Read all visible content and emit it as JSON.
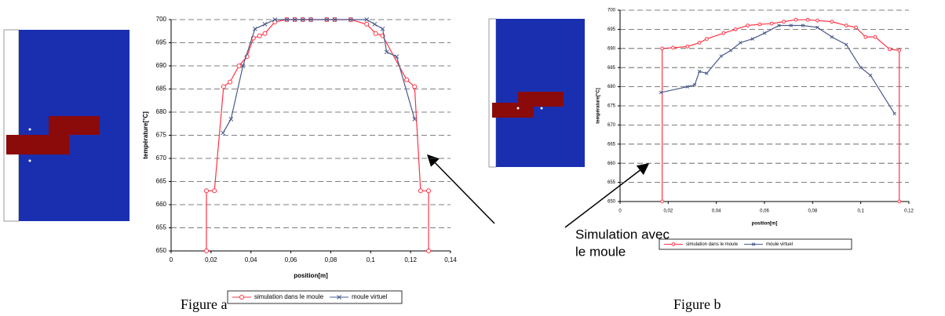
{
  "chart_data": [
    {
      "type": "line",
      "caption": "Figure a",
      "x_label": "position[m]",
      "y_label": "température[°C]",
      "xlim": [
        0,
        0.14
      ],
      "ylim": [
        650,
        700
      ],
      "xticks": [
        0,
        {
          "value": 0.02,
          "label": "0,02"
        },
        {
          "value": 0.04,
          "label": "0,04"
        },
        {
          "value": 0.06,
          "label": "0,06"
        },
        {
          "value": 0.08,
          "label": "0,08"
        },
        {
          "value": 0.1,
          "label": "0,1"
        },
        {
          "value": 0.12,
          "label": "0,12"
        },
        {
          "value": 0.14,
          "label": "0,14"
        }
      ],
      "yticks": [
        650,
        655,
        660,
        665,
        670,
        675,
        680,
        685,
        690,
        695,
        700
      ],
      "grid": true,
      "series": [
        {
          "name": "simulation dans le moule",
          "color": "#ff3344",
          "marker": "circle",
          "x": [
            0.0177,
            0.0177,
            0.0217,
            0.0263,
            0.0295,
            0.034,
            0.038,
            0.0412,
            0.0443,
            0.047,
            0.052,
            0.058,
            0.062,
            0.066,
            0.07,
            0.078,
            0.082,
            0.09,
            0.098,
            0.1025,
            0.106,
            0.118,
            0.122,
            0.125,
            0.129,
            0.129
          ],
          "values": [
            650,
            663,
            663,
            685.5,
            686.5,
            690,
            692,
            696,
            696.5,
            697,
            699.5,
            700,
            700,
            700,
            700,
            700,
            700,
            700,
            699,
            697,
            696.5,
            687,
            685.5,
            663,
            663,
            650
          ]
        },
        {
          "name": "moule virtuel",
          "color": "#4a5a8c",
          "marker": "x",
          "x": [
            0.026,
            0.03,
            0.036,
            0.042,
            0.047,
            0.052,
            0.058,
            0.062,
            0.066,
            0.07,
            0.078,
            0.082,
            0.09,
            0.098,
            0.102,
            0.106,
            0.108,
            0.113,
            0.122
          ],
          "values": [
            675.5,
            678.5,
            690,
            698,
            699,
            700,
            700,
            700,
            700,
            700,
            700,
            700,
            700,
            700,
            699,
            698,
            693,
            692,
            678.5
          ]
        }
      ]
    },
    {
      "type": "line",
      "caption": "Figure b",
      "x_label": "position[m]",
      "y_label": "température[°C]",
      "xlim": [
        0,
        0.12
      ],
      "ylim": [
        650,
        700
      ],
      "xticks": [
        0,
        {
          "value": 0.02,
          "label": "0,02"
        },
        {
          "value": 0.04,
          "label": "0,04"
        },
        {
          "value": 0.06,
          "label": "0,06"
        },
        {
          "value": 0.08,
          "label": "0,08"
        },
        {
          "value": 0.1,
          "label": "0,1"
        },
        {
          "value": 0.12,
          "label": "0,12"
        }
      ],
      "yticks": [
        650,
        655,
        660,
        665,
        670,
        675,
        680,
        685,
        690,
        695,
        700
      ],
      "grid": true,
      "series": [
        {
          "name": "simulation dans le moule",
          "color": "#ff3344",
          "marker": "circle",
          "x": [
            0.0175,
            0.0175,
            0.022,
            0.028,
            0.033,
            0.036,
            0.043,
            0.048,
            0.053,
            0.058,
            0.063,
            0.068,
            0.073,
            0.078,
            0.082,
            0.088,
            0.094,
            0.098,
            0.102,
            0.106,
            0.112,
            0.116,
            0.116
          ],
          "values": [
            650,
            690,
            690.2,
            690.5,
            691.5,
            692.5,
            694,
            695,
            696,
            696.3,
            696.5,
            697,
            697.5,
            697.5,
            697.3,
            697,
            696,
            695.5,
            693,
            693,
            689.8,
            689.5,
            650
          ]
        },
        {
          "name": "moule virtuel",
          "color": "#4a5a8c",
          "marker": "x",
          "x": [
            0.017,
            0.028,
            0.031,
            0.033,
            0.036,
            0.042,
            0.046,
            0.05,
            0.055,
            0.06,
            0.066,
            0.071,
            0.076,
            0.082,
            0.088,
            0.094,
            0.1,
            0.104,
            0.114
          ],
          "values": [
            678.5,
            680,
            680.5,
            684,
            683.5,
            688,
            689.5,
            691.5,
            692.5,
            694,
            696,
            696,
            696,
            695.5,
            693,
            691,
            685,
            683,
            673
          ]
        }
      ]
    }
  ],
  "annotation": [
    "Simulation avec",
    "le moule"
  ]
}
